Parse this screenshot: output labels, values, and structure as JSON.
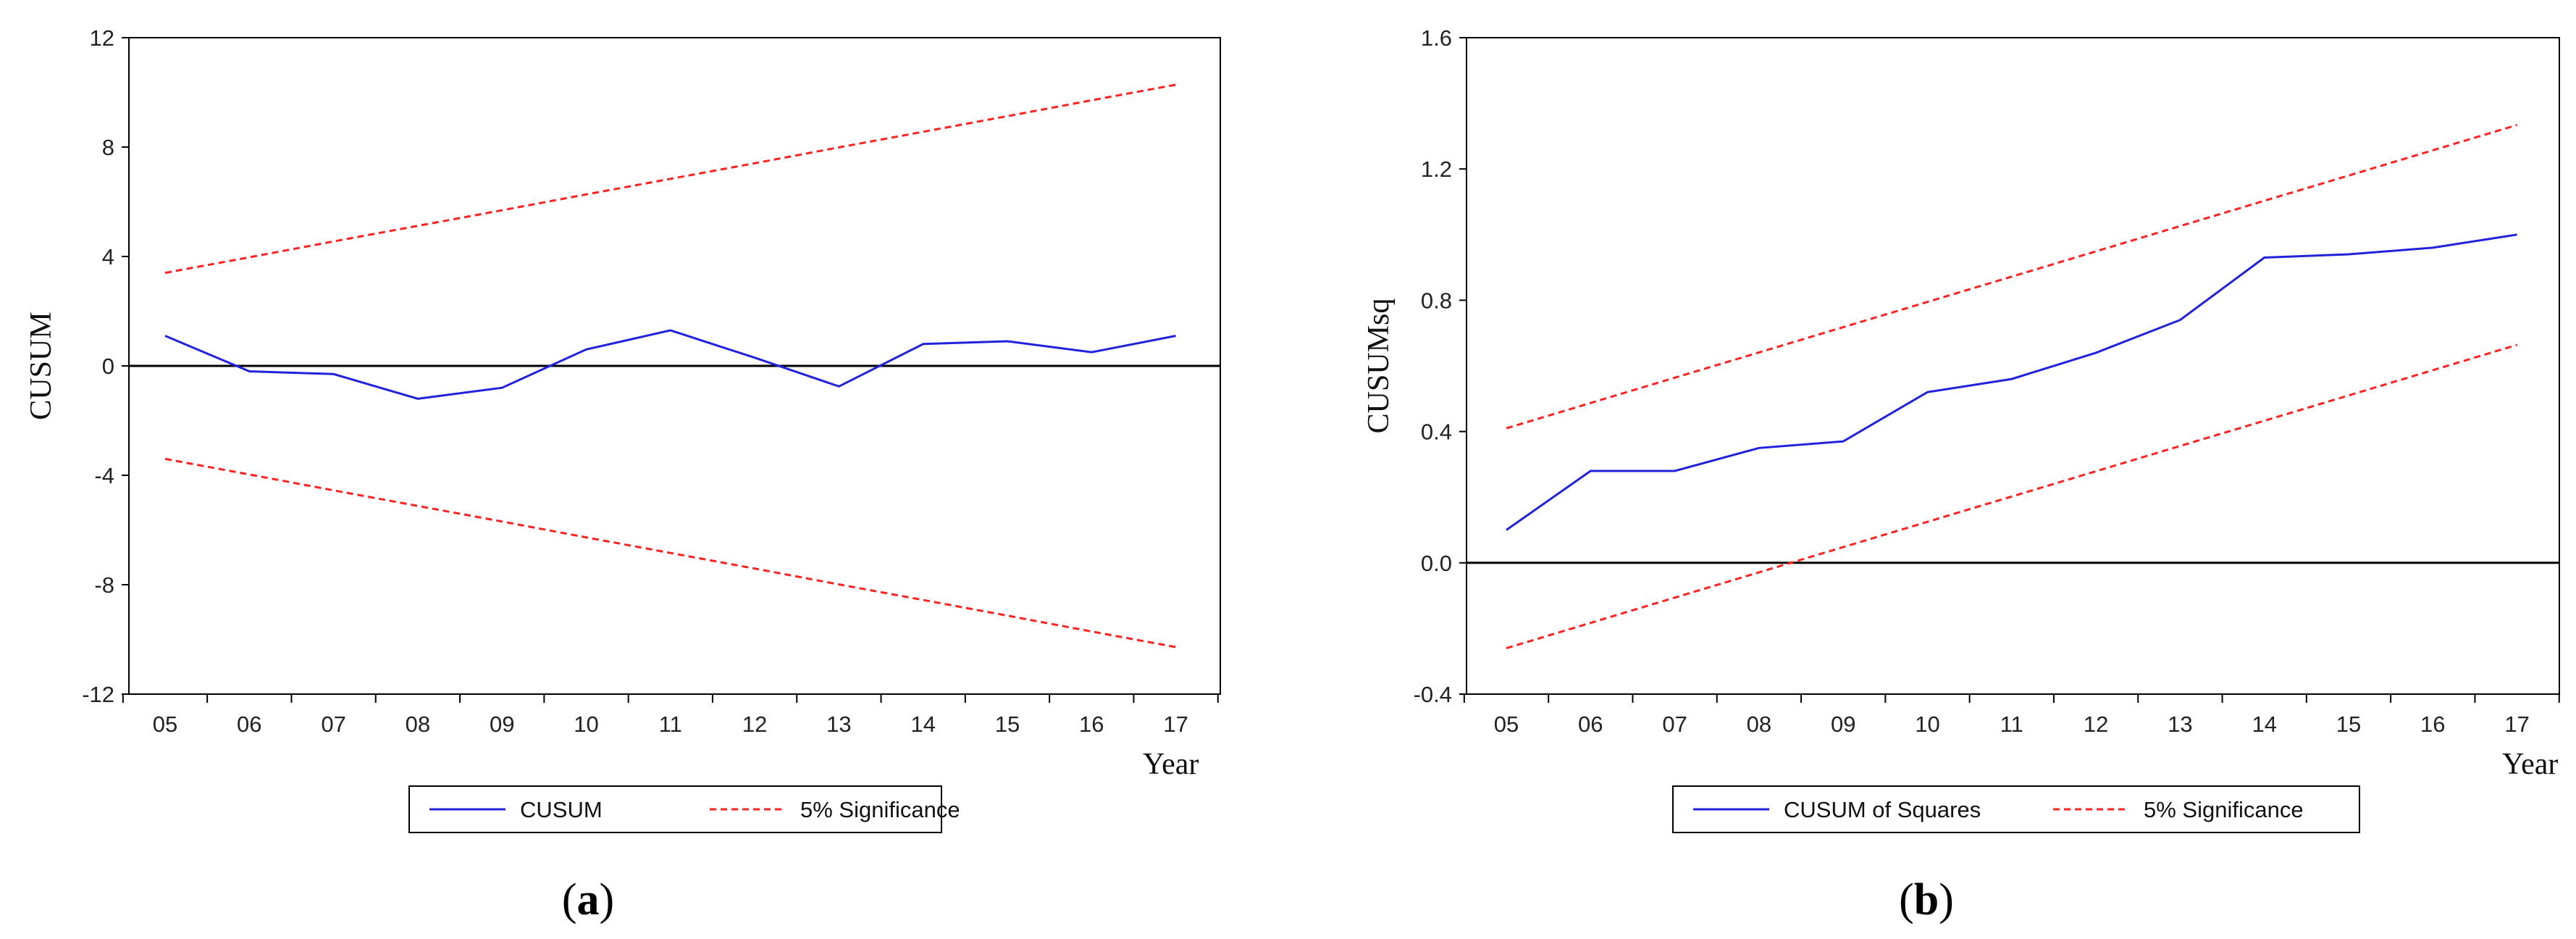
{
  "chart_data": [
    {
      "type": "line",
      "caption": {
        "open": "(",
        "letter": "a",
        "close": ")"
      },
      "xlabel": "Year",
      "ylabel": "CUSUM",
      "categories": [
        "05",
        "06",
        "07",
        "08",
        "09",
        "10",
        "11",
        "12",
        "13",
        "14",
        "15",
        "16",
        "17"
      ],
      "yticks": [
        "12",
        "8",
        "4",
        "0",
        "-4",
        "-8",
        "-12"
      ],
      "ylim": [
        -12,
        12
      ],
      "zero_line": true,
      "series": [
        {
          "name": "CUSUM",
          "color": "#2222dd",
          "style": "solid",
          "values": [
            1.1,
            -0.2,
            -0.3,
            -1.2,
            -0.8,
            0.6,
            1.3,
            0.3,
            -0.75,
            0.8,
            0.9,
            0.5,
            1.1
          ]
        },
        {
          "name": "5% Significance",
          "color": "#ff2222",
          "style": "dashed",
          "legend": false,
          "values": [
            3.4,
            3.97,
            4.55,
            5.12,
            5.69,
            6.27,
            6.84,
            7.41,
            7.99,
            8.56,
            9.13,
            9.71,
            10.28
          ]
        },
        {
          "name": "5% Significance",
          "color": "#ff2222",
          "style": "dashed",
          "legend": true,
          "values": [
            -3.4,
            -3.97,
            -4.55,
            -5.12,
            -5.69,
            -6.27,
            -6.84,
            -7.41,
            -7.99,
            -8.56,
            -9.13,
            -9.71,
            -10.28
          ]
        }
      ],
      "legend": [
        "CUSUM",
        "5% Significance"
      ]
    },
    {
      "type": "line",
      "caption": {
        "open": "(",
        "letter": "b",
        "close": ")"
      },
      "xlabel": "Year",
      "ylabel": "CUSUMsq",
      "categories": [
        "05",
        "06",
        "07",
        "08",
        "09",
        "10",
        "11",
        "12",
        "13",
        "14",
        "15",
        "16",
        "17"
      ],
      "yticks": [
        "1.6",
        "1.2",
        "0.8",
        "0.4",
        "0.0",
        "-0.4"
      ],
      "ylim": [
        -0.4,
        1.6
      ],
      "zero_line": true,
      "series": [
        {
          "name": "CUSUM of Squares",
          "color": "#2222dd",
          "style": "solid",
          "values": [
            0.1,
            0.28,
            0.28,
            0.35,
            0.37,
            0.52,
            0.56,
            0.64,
            0.74,
            0.93,
            0.94,
            0.96,
            1.0
          ]
        },
        {
          "name": "5% Significance",
          "color": "#ff2222",
          "style": "dashed",
          "legend": false,
          "values": [
            0.41,
            0.487,
            0.564,
            0.641,
            0.718,
            0.795,
            0.872,
            0.949,
            1.026,
            1.103,
            1.18,
            1.257,
            1.334
          ]
        },
        {
          "name": "5% Significance",
          "color": "#ff2222",
          "style": "dashed",
          "legend": true,
          "values": [
            -0.26,
            -0.183,
            -0.106,
            -0.029,
            0.048,
            0.125,
            0.202,
            0.279,
            0.356,
            0.433,
            0.51,
            0.587,
            0.664
          ]
        }
      ],
      "legend": [
        "CUSUM of Squares",
        "5% Significance"
      ]
    }
  ]
}
